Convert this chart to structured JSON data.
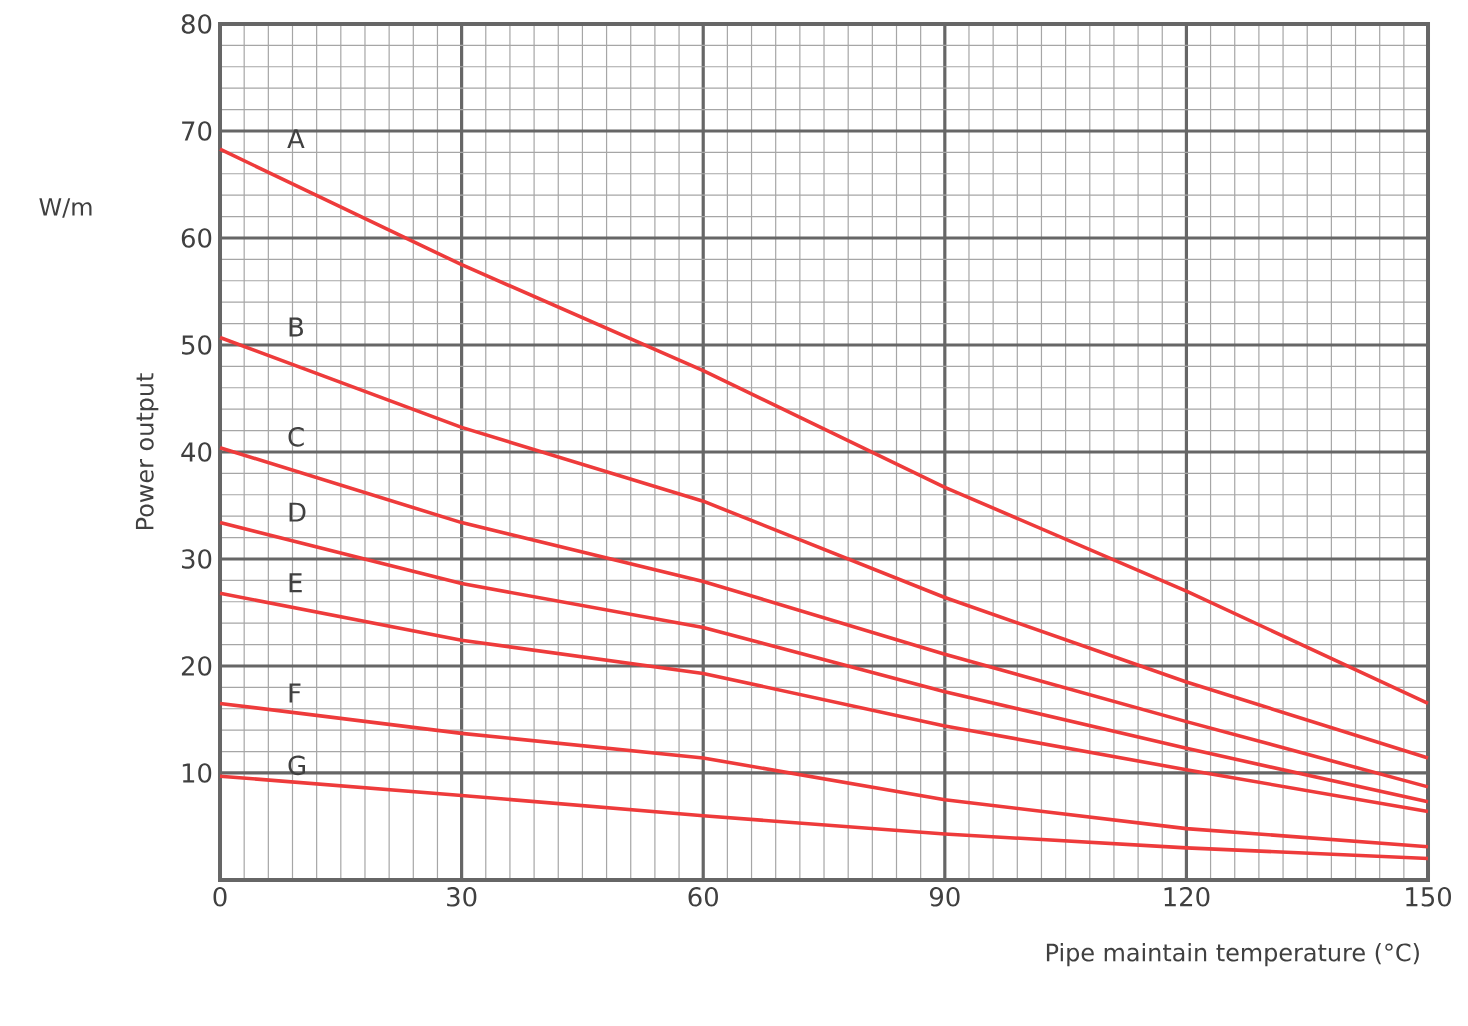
{
  "chart_data": {
    "type": "line",
    "xlabel": "Pipe maintain temperature (°C)",
    "ylabel": "Power output",
    "annotations": [
      "W/m"
    ],
    "x": [
      0,
      30,
      60,
      90,
      120,
      150
    ],
    "series": [
      {
        "name": "A",
        "color": "#ee3b3b",
        "values": [
          68.3,
          57.5,
          47.6,
          36.7,
          27,
          16.5
        ]
      },
      {
        "name": "B",
        "color": "#ee3b3b",
        "values": [
          50.7,
          42.3,
          35.4,
          26.4,
          18.5,
          11.4
        ]
      },
      {
        "name": "C",
        "color": "#ee3b3b",
        "values": [
          40.4,
          33.4,
          27.9,
          21.1,
          14.8,
          8.7
        ]
      },
      {
        "name": "D",
        "color": "#ee3b3b",
        "values": [
          33.4,
          27.7,
          23.6,
          17.6,
          12.3,
          7.3
        ]
      },
      {
        "name": "E",
        "color": "#ee3b3b",
        "values": [
          26.8,
          22.4,
          19.3,
          14.4,
          10.3,
          6.4
        ]
      },
      {
        "name": "F",
        "color": "#ee3b3b",
        "values": [
          16.5,
          13.7,
          11.4,
          7.5,
          4.8,
          3.1
        ]
      },
      {
        "name": "G",
        "color": "#ee3b3b",
        "values": [
          9.7,
          7.9,
          6,
          4.3,
          3,
          2
        ]
      }
    ],
    "xlim": [
      0,
      150
    ],
    "ylim": [
      0,
      80
    ],
    "xticks": [
      0,
      30,
      60,
      90,
      120,
      150
    ],
    "yticks": [
      10,
      20,
      30,
      40,
      50,
      60,
      70,
      80
    ],
    "grid": true,
    "marker": "none",
    "line_style": "solid"
  }
}
